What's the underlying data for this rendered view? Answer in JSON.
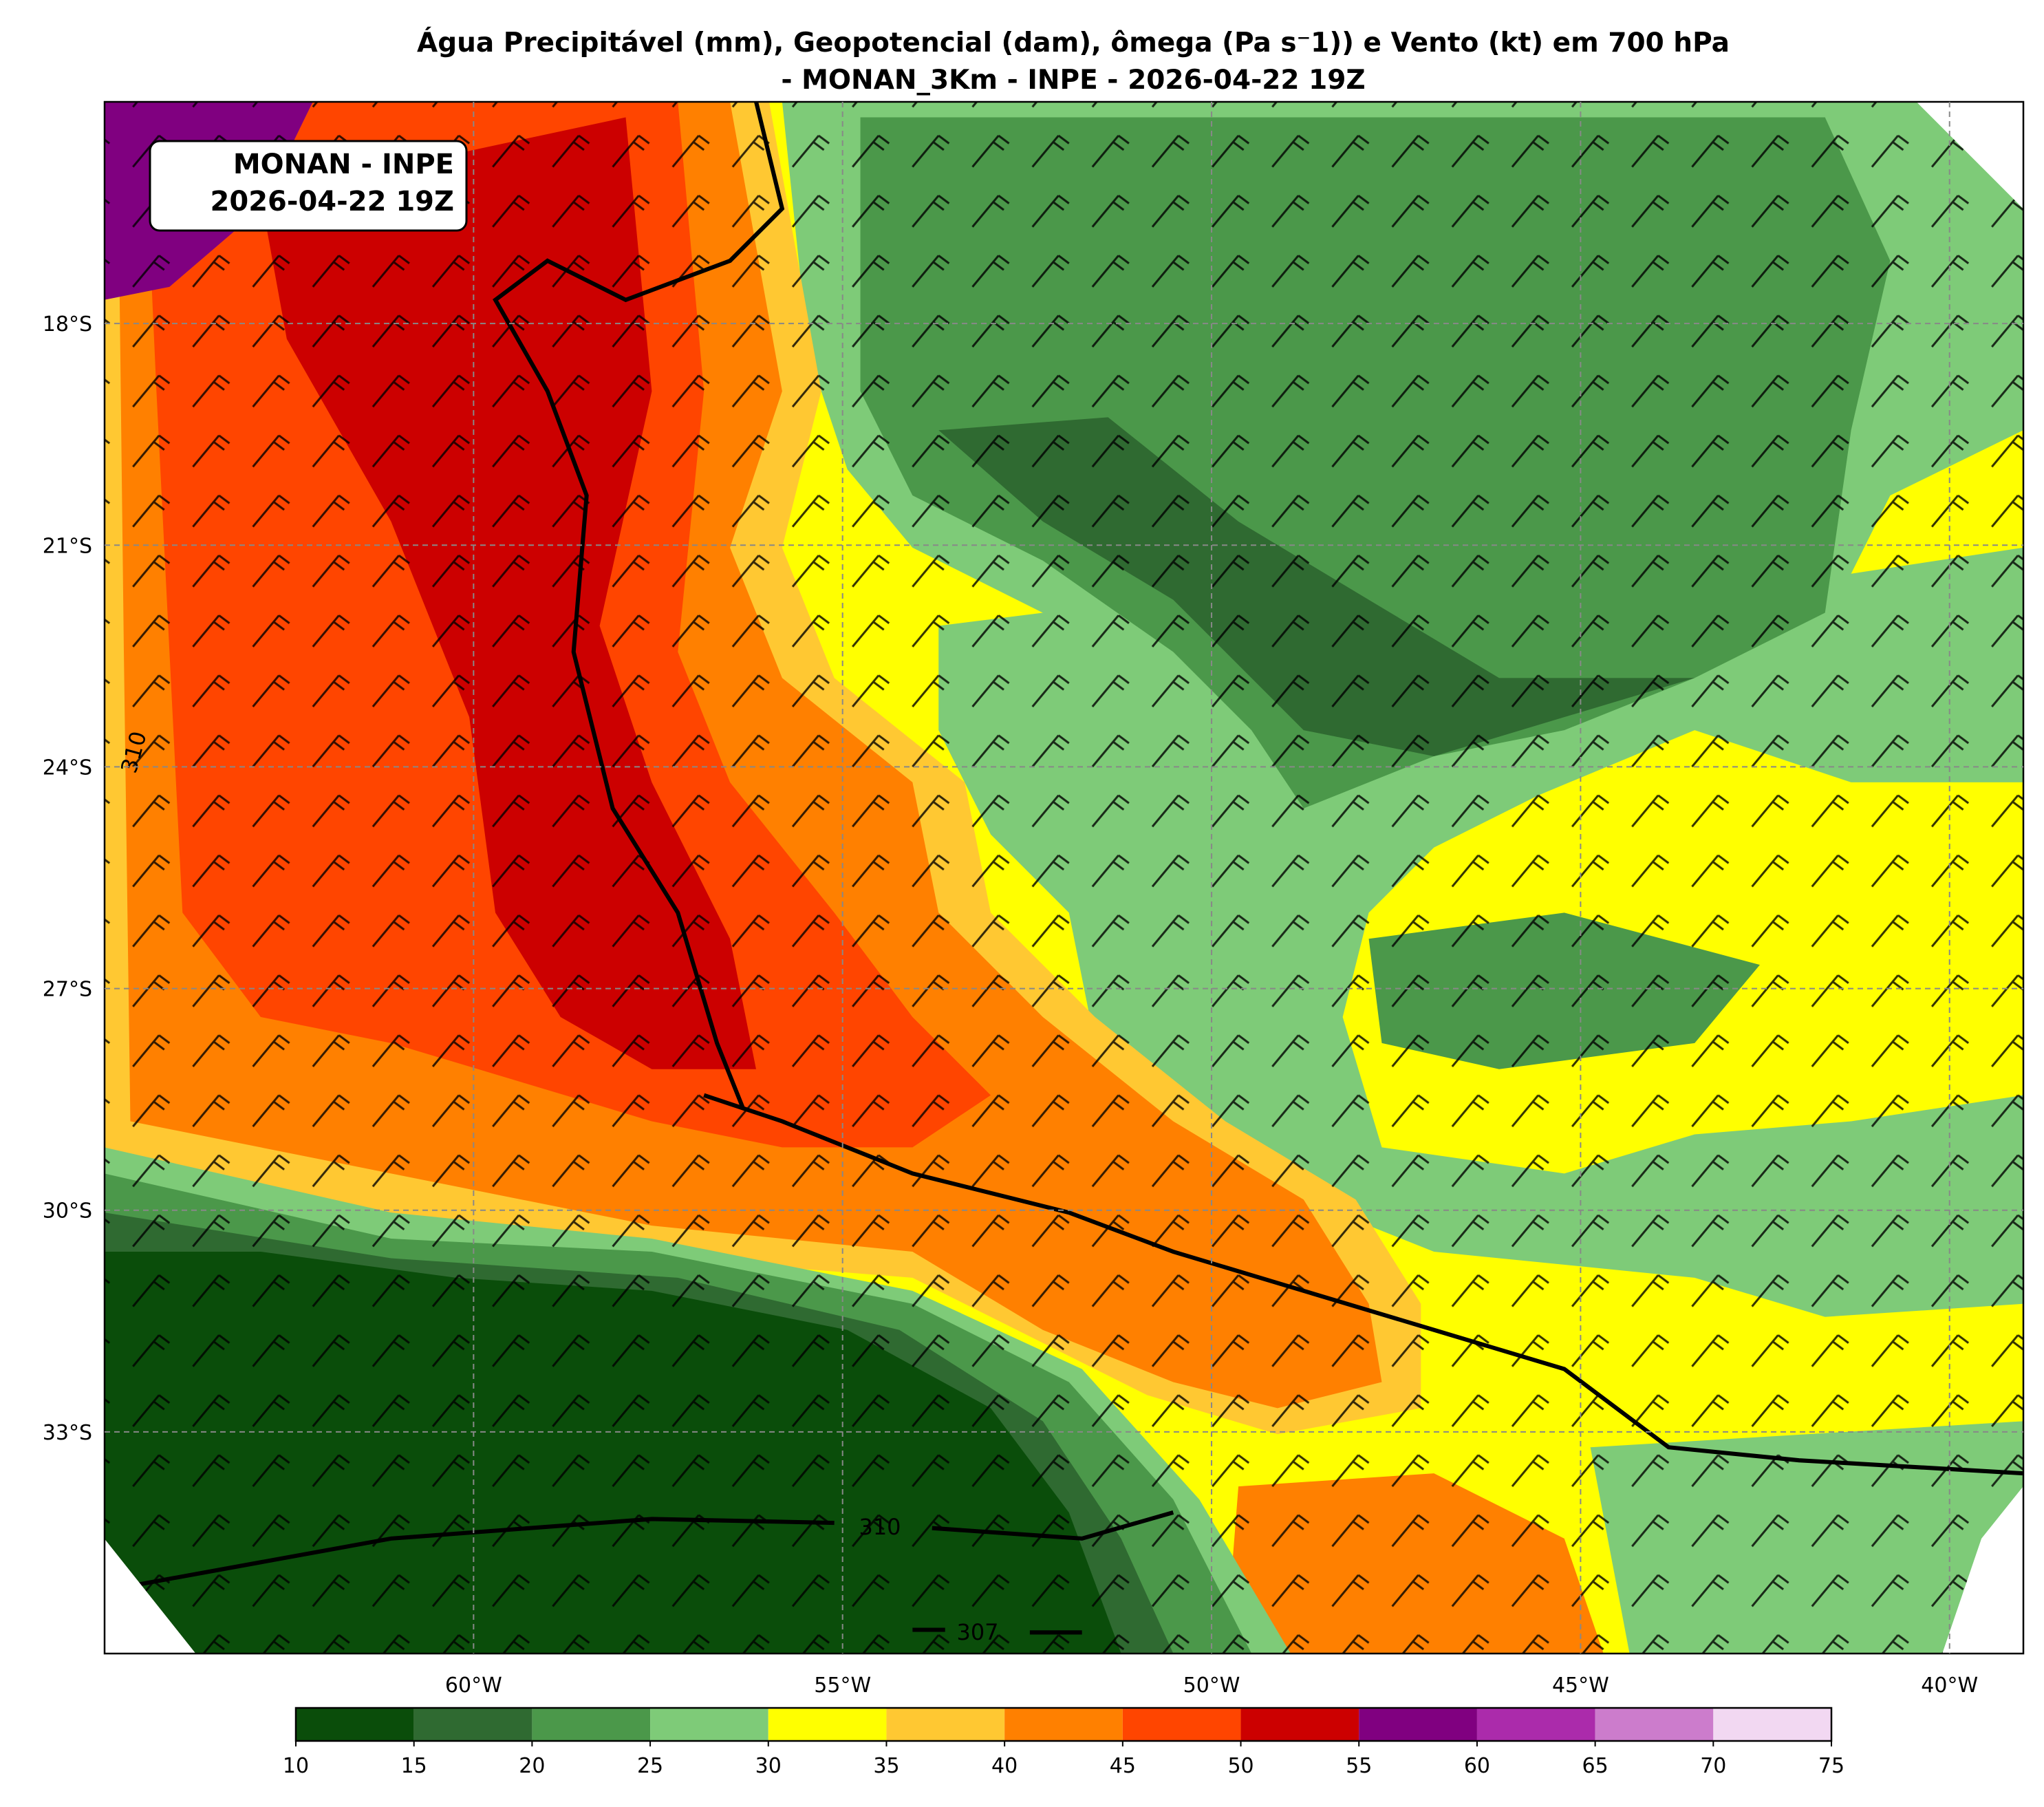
{
  "title": [
    "Água Precipitável (mm), Geopotencial (dam), ômega (Pa s⁻1)) e Vento (kt) em 700 hPa",
    "- MONAN_3Km - INPE - 2026-04-22 19Z"
  ],
  "info_box": [
    "MONAN - INPE",
    "2026-04-22 19Z"
  ],
  "map": {
    "xlim": [
      -65,
      -39
    ],
    "ylim": [
      -36,
      -15
    ],
    "xticks": [
      {
        "value": -60,
        "label": "60°W"
      },
      {
        "value": -55,
        "label": "55°W"
      },
      {
        "value": -50,
        "label": "50°W"
      },
      {
        "value": -45,
        "label": "45°W"
      },
      {
        "value": -40,
        "label": "40°W"
      }
    ],
    "yticks": [
      {
        "value": -18,
        "label": "18°S"
      },
      {
        "value": -21,
        "label": "21°S"
      },
      {
        "value": -24,
        "label": "24°S"
      },
      {
        "value": -27,
        "label": "27°S"
      },
      {
        "value": -30,
        "label": "30°S"
      },
      {
        "value": -33,
        "label": "33°S"
      }
    ],
    "grid": true,
    "contour_labels": [
      "310",
      "307"
    ]
  },
  "colorbar": {
    "ticks": [
      10,
      15,
      20,
      25,
      30,
      35,
      40,
      45,
      50,
      55,
      60,
      65,
      70,
      75
    ],
    "colors": [
      "#0a4d0a",
      "#2f6a31",
      "#4b984a",
      "#7ecb78",
      "#ffff00",
      "#ffc832",
      "#ff8000",
      "#ff4500",
      "#cc0000",
      "#800080",
      "#ab2bab",
      "#cc7ccc",
      "#f2d8f2"
    ]
  }
}
